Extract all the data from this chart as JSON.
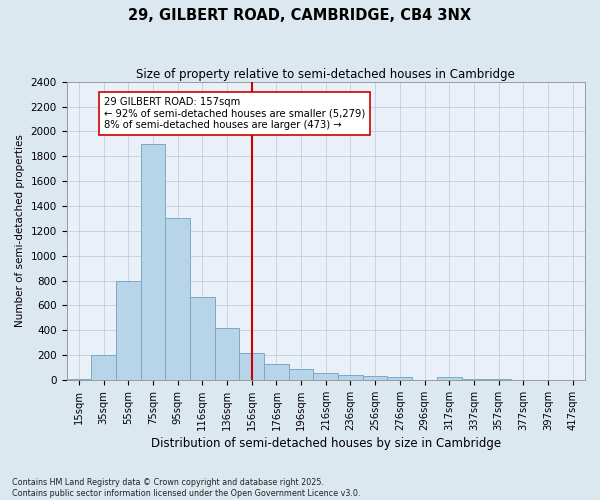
{
  "title": "29, GILBERT ROAD, CAMBRIDGE, CB4 3NX",
  "subtitle": "Size of property relative to semi-detached houses in Cambridge",
  "xlabel": "Distribution of semi-detached houses by size in Cambridge",
  "ylabel": "Number of semi-detached properties",
  "categories": [
    "15sqm",
    "35sqm",
    "55sqm",
    "75sqm",
    "95sqm",
    "116sqm",
    "136sqm",
    "156sqm",
    "176sqm",
    "196sqm",
    "216sqm",
    "236sqm",
    "256sqm",
    "276sqm",
    "296sqm",
    "317sqm",
    "337sqm",
    "357sqm",
    "377sqm",
    "397sqm",
    "417sqm"
  ],
  "values": [
    5,
    200,
    800,
    1900,
    1300,
    670,
    420,
    220,
    130,
    90,
    60,
    40,
    30,
    20,
    2,
    20,
    5,
    5,
    2,
    1,
    0
  ],
  "bar_color": "#b8d4e8",
  "bar_edge_color": "#7aaac8",
  "highlight_index": 7,
  "highlight_color": "#cc0000",
  "annotation_title": "29 GILBERT ROAD: 157sqm",
  "annotation_line1": "← 92% of semi-detached houses are smaller (5,279)",
  "annotation_line2": "8% of semi-detached houses are larger (473) →",
  "ylim": [
    0,
    2400
  ],
  "yticks": [
    0,
    200,
    400,
    600,
    800,
    1000,
    1200,
    1400,
    1600,
    1800,
    2000,
    2200,
    2400
  ],
  "footer_line1": "Contains HM Land Registry data © Crown copyright and database right 2025.",
  "footer_line2": "Contains public sector information licensed under the Open Government Licence v3.0.",
  "bg_color": "#dce8f0",
  "plot_bg_color": "#eaf0f8"
}
